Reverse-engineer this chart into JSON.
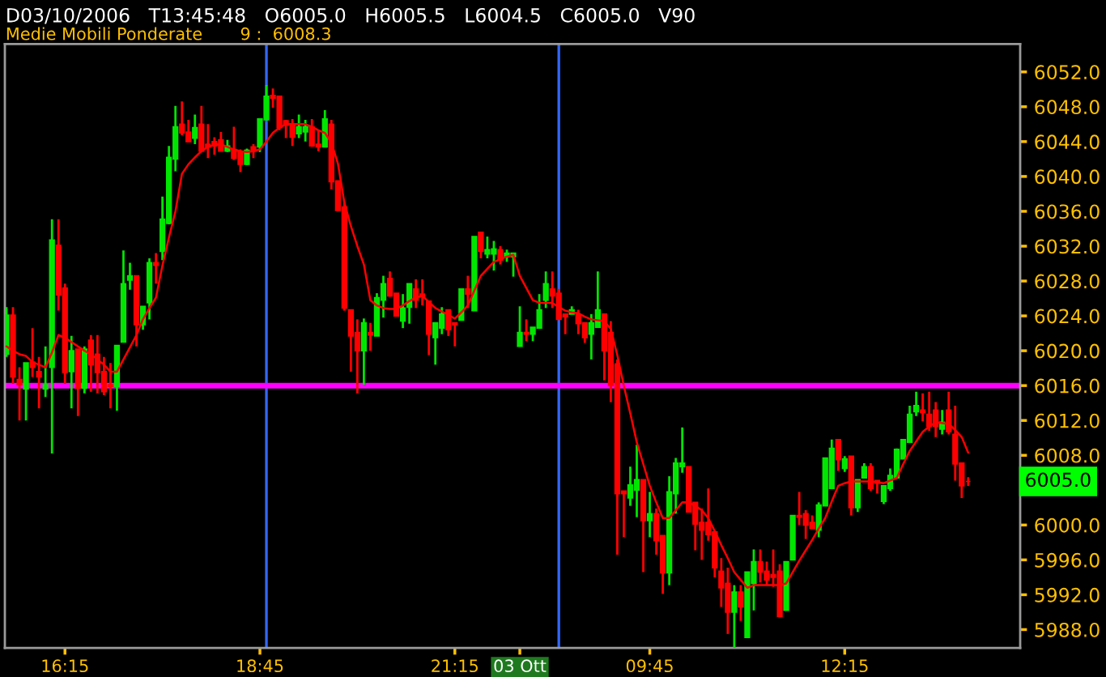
{
  "chart_data": {
    "type": "candlestick",
    "title": "D03/10/2006   T13:45:48   O6005.0   H6005.5   L6004.5   C6005.0   V90",
    "subtitle": "Medie Mobili Ponderate       9 :  6008.3",
    "categories": [
      null,
      null,
      null,
      null,
      null,
      null,
      null,
      null,
      null,
      "16:15",
      null,
      null,
      null,
      null,
      null,
      null,
      null,
      null,
      null,
      null,
      null,
      null,
      null,
      null,
      null,
      null,
      null,
      null,
      null,
      null,
      null,
      null,
      null,
      null,
      null,
      null,
      null,
      null,
      null,
      "18:45",
      null,
      null,
      null,
      null,
      null,
      null,
      null,
      null,
      null,
      null,
      null,
      null,
      null,
      null,
      null,
      null,
      null,
      null,
      null,
      null,
      null,
      null,
      null,
      null,
      null,
      null,
      null,
      null,
      null,
      "21:15",
      null,
      null,
      null,
      null,
      null,
      null,
      null,
      null,
      null,
      "03 Ott",
      null,
      null,
      null,
      null,
      null,
      null,
      null,
      null,
      null,
      null,
      null,
      null,
      null,
      null,
      null,
      null,
      null,
      null,
      null,
      "09:45",
      null,
      null,
      null,
      null,
      null,
      null,
      null,
      null,
      null,
      null,
      null,
      null,
      null,
      null,
      null,
      null,
      null,
      null,
      null,
      null,
      null,
      null,
      null,
      null,
      null,
      null,
      null,
      null,
      null,
      "12:15",
      null,
      null,
      null,
      null,
      null,
      null,
      null,
      null,
      null,
      null,
      null,
      null,
      null,
      null,
      null,
      null,
      null,
      null,
      null
    ],
    "series": [
      {
        "colors": [
          "#00e600",
          "#ff0000",
          "#ff0000",
          "#00e600",
          "#ff0000",
          "#ff0000",
          "#00e600",
          "#00e600",
          "#ff0000",
          "#ff0000",
          "#00e600",
          "#ff0000",
          "#00e600",
          "#ff0000",
          "#ff0000",
          "#ff0000",
          "#ff0000",
          "#00e600",
          "#00e600",
          "#00e600",
          "#ff0000",
          "#00e600",
          "#00e600",
          "#ff0000",
          "#00e600",
          "#00e600",
          "#00e600",
          "#ff0000",
          "#ff0000",
          "#00e600",
          "#ff0000",
          "#ff0000",
          "#ff0000",
          "#ff0000",
          "#00e600",
          "#ff0000",
          "#ff0000",
          "#00e600",
          "#ff0000",
          "#00e600",
          "#00e600",
          "#ff0000",
          "#ff0000",
          "#ff0000",
          "#ff0000",
          "#00e600",
          "#00e600",
          "#ff0000",
          "#ff0000",
          "#00e600",
          "#ff0000",
          "#ff0000",
          "#ff0000",
          "#ff0000",
          "#ff0000",
          "#00e600",
          "#ff0000",
          "#00e600",
          "#00e600",
          "#ff0000",
          "#ff0000",
          "#00e600",
          "#00e600",
          "#ff0000",
          "#ff0000",
          "#ff0000",
          "#00e600",
          "#00e600",
          "#ff0000",
          "#ff0000",
          "#00e600",
          "#ff0000",
          "#00e600",
          "#ff0000",
          "#00e600",
          "#00e600",
          "#ff0000",
          "#00e600",
          "#00e600",
          "#00e600",
          "#ff0000",
          "#00e600",
          "#00e600",
          "#00e600",
          "#ff0000",
          "#ff0000",
          "#ff0000",
          "#00e600",
          "#ff0000",
          "#ff0000",
          "#00e600",
          "#00e600",
          "#ff0000",
          "#ff0000",
          "#ff0000",
          "#ff0000",
          "#00e600",
          "#00e600",
          "#ff0000",
          "#00e600",
          "#ff0000",
          "#ff0000",
          "#00e600",
          "#00e600",
          "#00e600",
          "#ff0000",
          "#ff0000",
          "#ff0000",
          "#ff0000",
          "#ff0000",
          "#ff0000",
          "#ff0000",
          "#00e600",
          "#ff0000",
          "#00e600",
          "#00e600",
          "#ff0000",
          "#ff0000",
          "#ff0000",
          "#ff0000",
          "#00e600",
          "#00e600",
          "#ff0000",
          "#ff0000",
          "#ff0000",
          "#00e600",
          "#00e600",
          "#00e600",
          "#ff0000",
          "#00e600",
          "#ff0000",
          "#00e600",
          "#00e600",
          "#ff0000",
          "#ff0000",
          "#00e600",
          "#00e600",
          "#00e600",
          "#00e600",
          "#00e600",
          "#00e600",
          "#ff0000",
          "#ff0000",
          "#ff0000",
          "#00e600",
          "#ff0000",
          "#ff0000",
          "#ff0000",
          "#ff0000"
        ],
        "ohlc": [
          [
            6019.6,
            6025.0,
            6019.3,
            6024.1
          ],
          [
            6024.1,
            6025.0,
            6016.2,
            6017.0
          ],
          [
            6016.7,
            6018.1,
            6012.0,
            6016.1
          ],
          [
            6015.6,
            6018.6,
            6012.0,
            6018.6
          ],
          [
            6018.7,
            6022.6,
            6017.0,
            6018.1
          ],
          [
            6017.6,
            6019.3,
            6013.4,
            6017.0
          ],
          [
            6015.6,
            6020.5,
            6014.7,
            6016.1
          ],
          [
            6018.1,
            6035.1,
            6008.2,
            6032.7
          ],
          [
            6032.1,
            6035.1,
            6024.6,
            6026.4
          ],
          [
            6027.2,
            6027.7,
            6016.2,
            6017.5
          ],
          [
            6017.6,
            6021.7,
            6013.4,
            6020.0
          ],
          [
            6020.2,
            6020.2,
            6012.5,
            6015.7
          ],
          [
            6015.7,
            6020.5,
            6015.1,
            6020.2
          ],
          [
            6021.2,
            6021.8,
            6015.3,
            6018.4
          ],
          [
            6019.6,
            6021.8,
            6015.1,
            6017.5
          ],
          [
            6017.6,
            6019.3,
            6014.9,
            6015.3
          ],
          [
            6016.1,
            6018.6,
            6013.4,
            6015.9
          ],
          [
            6015.9,
            6020.6,
            6013.1,
            6020.6
          ],
          [
            6021.0,
            6031.5,
            6021.0,
            6027.7
          ],
          [
            6028.1,
            6030.1,
            6027.0,
            6028.6
          ],
          [
            6028.6,
            6028.6,
            6020.5,
            6023.0
          ],
          [
            6023.0,
            6025.1,
            6022.4,
            6025.1
          ],
          [
            6025.5,
            6030.6,
            6023.6,
            6030.1
          ],
          [
            6030.1,
            6031.2,
            6027.7,
            6029.8
          ],
          [
            6031.4,
            6037.7,
            6030.4,
            6035.1
          ],
          [
            6034.6,
            6043.5,
            6034.5,
            6042.2
          ],
          [
            6042.0,
            6048.1,
            6040.6,
            6045.7
          ],
          [
            6046.0,
            6048.6,
            6044.7,
            6045.0
          ],
          [
            6045.1,
            6046.5,
            6044.0,
            6044.0
          ],
          [
            6044.4,
            6047.1,
            6043.7,
            6045.6
          ],
          [
            6046.0,
            6048.1,
            6042.8,
            6042.9
          ],
          [
            6043.7,
            6046.0,
            6042.1,
            6043.4
          ],
          [
            6044.0,
            6044.5,
            6042.5,
            6043.5
          ],
          [
            6044.2,
            6045.1,
            6042.9,
            6042.9
          ],
          [
            6042.9,
            6044.2,
            6042.8,
            6043.5
          ],
          [
            6043.1,
            6045.7,
            6041.9,
            6042.1
          ],
          [
            6042.8,
            6043.1,
            6040.5,
            6041.4
          ],
          [
            6041.4,
            6043.2,
            6041.3,
            6043.0
          ],
          [
            6043.4,
            6043.7,
            6042.1,
            6042.9
          ],
          [
            6043.4,
            6046.6,
            6042.8,
            6046.6
          ],
          [
            6046.5,
            6050.5,
            6046.5,
            6049.2
          ],
          [
            6049.3,
            6050.1,
            6047.9,
            6049.0
          ],
          [
            6049.2,
            6049.2,
            6045.3,
            6045.6
          ],
          [
            6046.4,
            6046.5,
            6044.4,
            6045.9
          ],
          [
            6046.0,
            6046.6,
            6043.5,
            6044.5
          ],
          [
            6044.9,
            6047.1,
            6044.4,
            6045.7
          ],
          [
            6045.1,
            6046.5,
            6044.0,
            6045.7
          ],
          [
            6045.7,
            6046.6,
            6043.4,
            6043.5
          ],
          [
            6043.7,
            6045.3,
            6042.9,
            6043.4
          ],
          [
            6043.4,
            6047.6,
            6043.4,
            6046.6
          ],
          [
            6046.0,
            6046.5,
            6038.5,
            6039.4
          ],
          [
            6039.5,
            6039.5,
            6036.1,
            6036.1
          ],
          [
            6036.5,
            6037.0,
            6024.6,
            6024.9
          ],
          [
            6024.7,
            6024.7,
            6017.6,
            6021.7
          ],
          [
            6022.1,
            6023.6,
            6015.1,
            6020.0
          ],
          [
            6020.0,
            6023.7,
            6016.1,
            6023.2
          ],
          [
            6022.1,
            6023.2,
            6020.0,
            6021.8
          ],
          [
            6021.7,
            6026.6,
            6021.7,
            6026.1
          ],
          [
            6025.8,
            6028.6,
            6023.8,
            6027.7
          ],
          [
            6028.3,
            6029.1,
            6026.2,
            6026.3
          ],
          [
            6026.6,
            6026.6,
            6024.0,
            6024.0
          ],
          [
            6023.4,
            6026.5,
            6022.6,
            6024.9
          ],
          [
            6025.0,
            6027.7,
            6023.1,
            6027.7
          ],
          [
            6027.1,
            6028.2,
            6024.9,
            6025.8
          ],
          [
            6026.5,
            6028.2,
            6025.2,
            6026.2
          ],
          [
            6025.7,
            6025.7,
            6019.5,
            6021.9
          ],
          [
            6021.5,
            6023.2,
            6018.4,
            6023.2
          ],
          [
            6022.6,
            6025.0,
            6021.9,
            6024.2
          ],
          [
            6024.7,
            6024.7,
            6021.7,
            6022.4
          ],
          [
            6023.2,
            6023.2,
            6020.5,
            6023.0
          ],
          [
            6023.5,
            6027.1,
            6023.5,
            6027.1
          ],
          [
            6027.1,
            6028.6,
            6024.9,
            6026.5
          ],
          [
            6024.6,
            6033.1,
            6024.6,
            6033.1
          ],
          [
            6033.6,
            6033.6,
            6030.6,
            6031.4
          ],
          [
            6031.1,
            6033.1,
            6030.6,
            6031.6
          ],
          [
            6031.1,
            6032.6,
            6029.2,
            6031.7
          ],
          [
            6031.6,
            6032.0,
            6029.9,
            6030.4
          ],
          [
            6030.8,
            6031.6,
            6030.2,
            6031.2
          ],
          [
            6030.8,
            6031.2,
            6028.5,
            6031.2
          ],
          [
            6020.5,
            6025.1,
            6020.5,
            6022.1
          ],
          [
            6022.1,
            6023.6,
            6021.1,
            6021.9
          ],
          [
            6021.9,
            6022.7,
            6021.1,
            6022.7
          ],
          [
            6022.6,
            6026.5,
            6022.6,
            6024.7
          ],
          [
            6025.8,
            6029.1,
            6024.9,
            6027.7
          ],
          [
            6027.1,
            6029.1,
            6024.9,
            6026.3
          ],
          [
            6026.6,
            6027.1,
            6023.6,
            6023.6
          ],
          [
            6024.2,
            6024.2,
            6021.9,
            6023.9
          ],
          [
            6024.2,
            6025.1,
            6024.2,
            6024.7
          ],
          [
            6024.2,
            6024.7,
            6021.9,
            6023.1
          ],
          [
            6023.2,
            6023.2,
            6020.9,
            6021.5
          ],
          [
            6021.9,
            6024.2,
            6019.0,
            6023.2
          ],
          [
            6022.7,
            6029.1,
            6022.7,
            6024.7
          ],
          [
            6024.2,
            6024.2,
            6016.6,
            6020.0
          ],
          [
            6022.1,
            6023.4,
            6014.1,
            6016.0
          ],
          [
            6018.5,
            6019.0,
            5996.6,
            6003.6
          ],
          [
            6003.9,
            6003.9,
            5998.6,
            6003.6
          ],
          [
            6003.1,
            6006.7,
            6002.2,
            6004.6
          ],
          [
            6004.0,
            6009.2,
            6000.9,
            6005.2
          ],
          [
            6005.2,
            6005.2,
            5994.6,
            6000.5
          ],
          [
            6000.5,
            6003.8,
            5998.6,
            6001.3
          ],
          [
            6001.3,
            6001.9,
            5996.6,
            5998.2
          ],
          [
            5998.8,
            5998.8,
            5992.1,
            5994.5
          ],
          [
            5994.5,
            6005.6,
            5993.1,
            6003.8
          ],
          [
            6003.6,
            6007.7,
            6001.3,
            6007.1
          ],
          [
            6006.7,
            6011.2,
            6006.0,
            6007.1
          ],
          [
            6006.7,
            6006.7,
            6001.5,
            6001.5
          ],
          [
            6002.6,
            6002.6,
            5997.1,
            6000.1
          ],
          [
            6000.3,
            6001.9,
            5996.0,
            5999.4
          ],
          [
            6000.3,
            6004.2,
            5998.2,
            5998.9
          ],
          [
            5999.2,
            5999.2,
            5994.0,
            5995.1
          ],
          [
            5994.7,
            5996.2,
            5990.6,
            5992.8
          ],
          [
            5993.3,
            5995.1,
            5987.5,
            5990.0
          ],
          [
            5990.0,
            5993.1,
            5985.3,
            5992.3
          ],
          [
            5992.3,
            5993.1,
            5989.0,
            5990.6
          ],
          [
            5987.1,
            5994.6,
            5987.1,
            5994.6
          ],
          [
            5993.3,
            5997.2,
            5990.2,
            5995.8
          ],
          [
            5995.8,
            5997.2,
            5993.4,
            5994.6
          ],
          [
            5994.7,
            5995.8,
            5993.1,
            5993.7
          ],
          [
            5994.3,
            5997.2,
            5992.9,
            5994.0
          ],
          [
            5994.7,
            5995.5,
            5989.5,
            5989.5
          ],
          [
            5990.2,
            5995.8,
            5990.2,
            5995.8
          ],
          [
            5996.0,
            6001.1,
            5996.0,
            6001.1
          ],
          [
            6001.1,
            6003.8,
            6000.0,
            6000.9
          ],
          [
            6001.3,
            6001.7,
            5998.4,
            6000.0
          ],
          [
            6000.3,
            6001.1,
            5999.6,
            5999.6
          ],
          [
            5999.4,
            6002.6,
            5998.6,
            6002.3
          ],
          [
            6002.2,
            6007.7,
            6002.2,
            6007.7
          ],
          [
            6004.2,
            6009.8,
            6004.2,
            6008.8
          ],
          [
            6009.8,
            6009.8,
            6006.2,
            6007.5
          ],
          [
            6006.5,
            6007.9,
            6006.1,
            6007.6
          ],
          [
            6007.9,
            6007.9,
            6001.1,
            6002.0
          ],
          [
            6002.0,
            6005.2,
            6001.5,
            6005.2
          ],
          [
            6005.4,
            6007.1,
            6005.4,
            6006.7
          ],
          [
            6006.7,
            6007.1,
            6003.9,
            6004.2
          ],
          [
            6005.1,
            6005.1,
            6003.6,
            6004.8
          ],
          [
            6002.7,
            6004.5,
            6002.4,
            6004.5
          ],
          [
            6004.2,
            6006.5,
            6003.9,
            6005.7
          ],
          [
            6005.4,
            6008.8,
            6005.4,
            6008.7
          ],
          [
            6007.6,
            6009.8,
            6007.6,
            6009.8
          ],
          [
            6009.5,
            6013.7,
            6009.5,
            6012.7
          ],
          [
            6013.0,
            6015.3,
            6012.5,
            6013.7
          ],
          [
            6013.2,
            6015.1,
            6011.9,
            6012.9
          ],
          [
            6012.7,
            6015.3,
            6010.8,
            6011.3
          ],
          [
            6013.2,
            6014.1,
            6010.1,
            6011.3
          ],
          [
            6011.0,
            6013.2,
            6010.4,
            6011.8
          ],
          [
            6013.2,
            6015.3,
            6010.4,
            6010.7
          ],
          [
            6010.4,
            6013.7,
            6005.1,
            6007.0
          ],
          [
            6007.1,
            6007.1,
            6003.1,
            6004.5
          ],
          [
            6005.0,
            6005.5,
            6004.5,
            6005.0
          ]
        ]
      },
      {
        "type": "line",
        "color": "#ff0000",
        "values": [
          6020.5,
          6020.0,
          6019.6,
          6019.4,
          6018.7,
          6018.4,
          6018.1,
          6019.8,
          6021.8,
          6021.5,
          6021.0,
          6020.5,
          6020.0,
          6019.6,
          6019.0,
          6018.4,
          6017.6,
          6017.6,
          6019.0,
          6020.4,
          6021.8,
          6023.6,
          6024.9,
          6026.1,
          6029.8,
          6033.0,
          6036.0,
          6040.3,
          6041.4,
          6042.2,
          6042.9,
          6043.4,
          6043.6,
          6043.7,
          6043.4,
          6043.1,
          6042.9,
          6042.8,
          6042.9,
          6043.1,
          6044.0,
          6045.0,
          6045.6,
          6046.0,
          6046.0,
          6046.0,
          6046.0,
          6045.7,
          6045.3,
          6045.0,
          6043.9,
          6041.5,
          6037.0,
          6034.3,
          6032.0,
          6029.9,
          6025.8,
          6025.2,
          6024.9,
          6024.8,
          6024.8,
          6025.2,
          6025.7,
          6026.1,
          6026.3,
          6025.6,
          6024.9,
          6024.5,
          6024.1,
          6023.7,
          6024.4,
          6025.2,
          6026.9,
          6028.6,
          6029.4,
          6030.2,
          6030.5,
          6030.8,
          6031.0,
          6028.6,
          6027.2,
          6025.8,
          6025.5,
          6025.5,
          6025.5,
          6025.0,
          6024.6,
          6024.4,
          6024.3,
          6023.9,
          6023.6,
          6023.5,
          6023.4,
          6022.5,
          6019.5,
          6016.0,
          6012.8,
          6009.5,
          6007.0,
          6004.5,
          6002.6,
          6000.8,
          6000.8,
          6001.7,
          6002.6,
          6002.6,
          6002.2,
          6001.7,
          6000.8,
          5999.3,
          5997.7,
          5996.2,
          5994.6,
          5993.7,
          5992.8,
          5993.1,
          5993.1,
          5993.1,
          5993.1,
          5993.1,
          5993.3,
          5994.6,
          5995.9,
          5997.1,
          5998.3,
          5999.6,
          6000.8,
          6002.7,
          6004.5,
          6004.8,
          6005.0,
          6005.0,
          6005.0,
          6005.0,
          6004.9,
          6004.8,
          6005.1,
          6005.4,
          6007.0,
          6008.5,
          6009.6,
          6010.7,
          6011.3,
          6011.8,
          6011.7,
          6011.6,
          6010.9,
          6010.1,
          6008.3
        ]
      }
    ],
    "ylim": [
      5985.9,
      6055.2
    ],
    "yticks": [
      {
        "value": 5988,
        "label": "5988.0"
      },
      {
        "value": 5992,
        "label": "5992.0"
      },
      {
        "value": 5996,
        "label": "5996.0"
      },
      {
        "value": 6000,
        "label": "6000.0"
      },
      {
        "value": 6008,
        "label": "6008.0"
      },
      {
        "value": 6012,
        "label": "6012.0"
      },
      {
        "value": 6016,
        "label": "6016.0"
      },
      {
        "value": 6020,
        "label": "6020.0"
      },
      {
        "value": 6024,
        "label": "6024.0"
      },
      {
        "value": 6028,
        "label": "6028.0"
      },
      {
        "value": 6032,
        "label": "6032.0"
      },
      {
        "value": 6036,
        "label": "6036.0"
      },
      {
        "value": 6040,
        "label": "6040.0"
      },
      {
        "value": 6044,
        "label": "6044.0"
      },
      {
        "value": 6048,
        "label": "6048.0"
      },
      {
        "value": 6052,
        "label": "6052.0"
      }
    ],
    "ref_lines": [
      {
        "axis": "y",
        "value": 6016,
        "color": "#ff00ff"
      }
    ],
    "annotations": [
      "6005.0"
    ],
    "grid": false,
    "legend": false
  }
}
